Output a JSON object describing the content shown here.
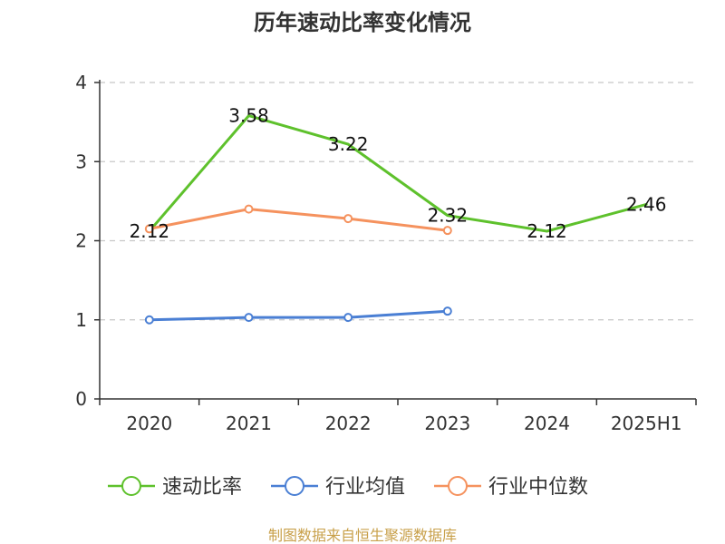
{
  "colors": {
    "speed_ratio": "#5ec12c",
    "industry_avg": "#4a7fd4",
    "industry_median": "#f5925e",
    "axis": "#333333",
    "grid": "#c8c8c8",
    "source": "#c8a04a"
  },
  "source_text": "制图数据来自恒生聚源数据库",
  "chart_data": {
    "type": "line",
    "title": "历年速动比率变化情况",
    "xlabel": "",
    "ylabel": "",
    "categories": [
      "2020",
      "2021",
      "2022",
      "2023",
      "2024",
      "2025H1"
    ],
    "ylim": [
      0,
      4
    ],
    "yticks": [
      "0",
      "1",
      "2",
      "3",
      "4"
    ],
    "grid": true,
    "legend_position": "bottom",
    "series": [
      {
        "name": "速动比率",
        "color": "#5ec12c",
        "values": [
          2.12,
          3.58,
          3.22,
          2.32,
          2.12,
          2.46
        ],
        "labels": [
          "2.12",
          "3.58",
          "3.22",
          "2.32",
          "2.12",
          "2.46"
        ],
        "show_markers": false,
        "show_labels": true
      },
      {
        "name": "行业均值",
        "color": "#4a7fd4",
        "values": [
          1.0,
          1.03,
          1.03,
          1.11,
          null,
          null
        ],
        "show_markers": true,
        "show_labels": false
      },
      {
        "name": "行业中位数",
        "color": "#f5925e",
        "values": [
          2.15,
          2.4,
          2.28,
          2.13,
          null,
          null
        ],
        "show_markers": true,
        "show_labels": false
      }
    ]
  }
}
